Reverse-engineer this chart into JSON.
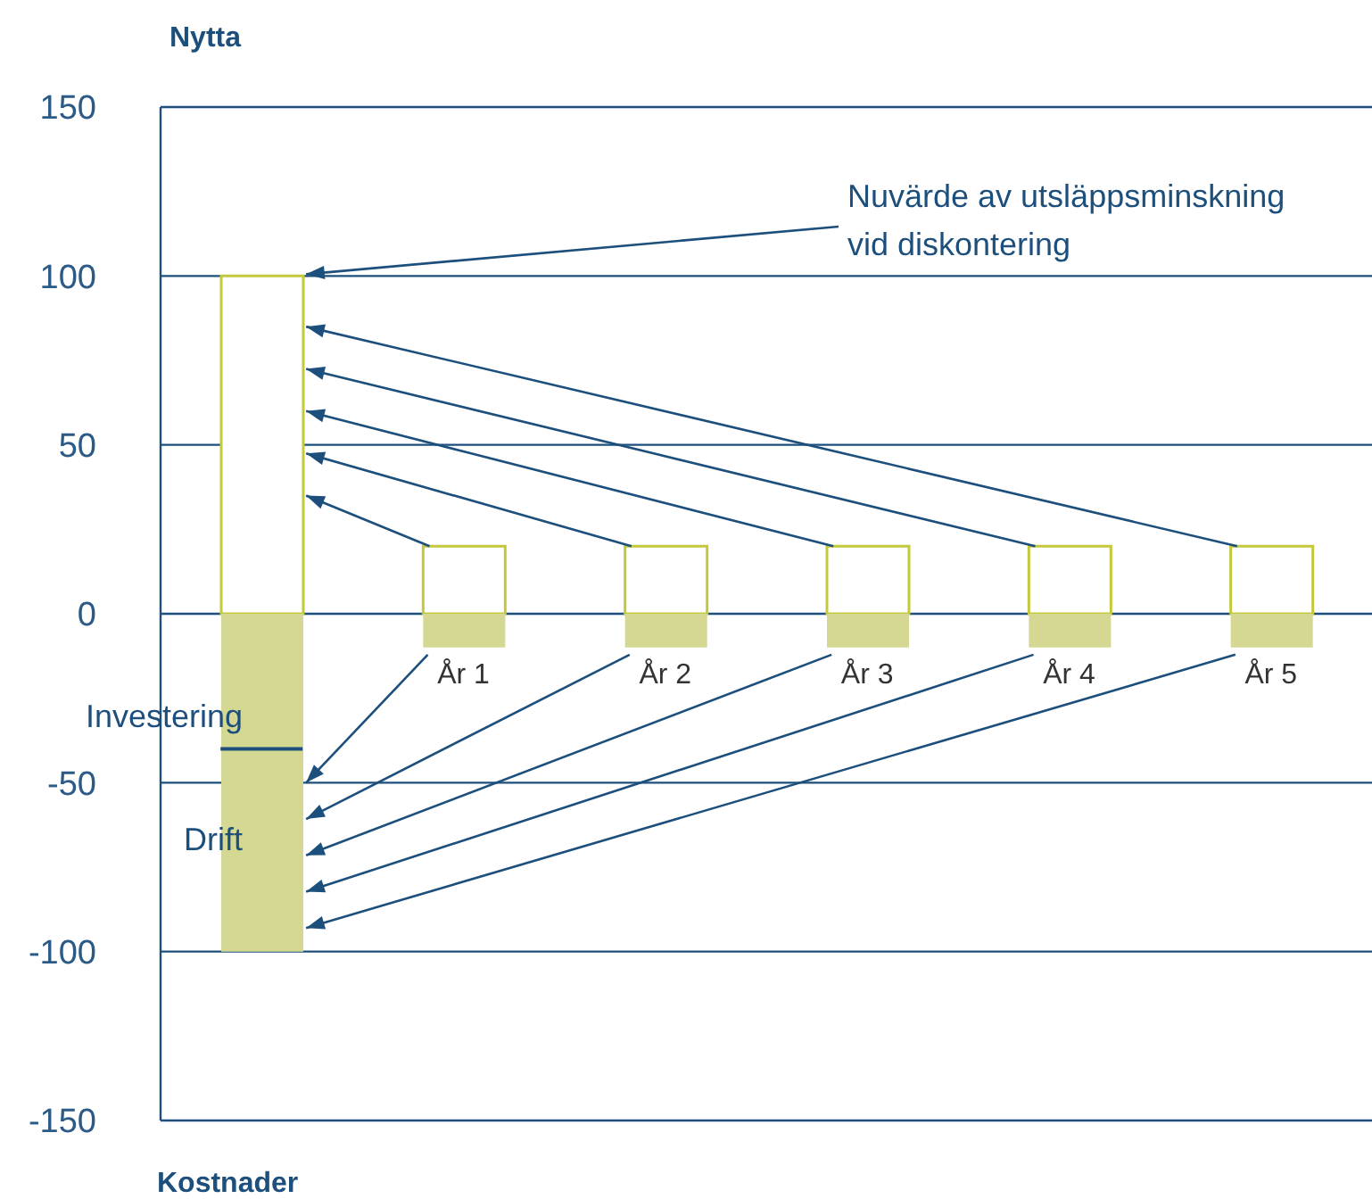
{
  "chart_data": {
    "type": "bar",
    "ylabel": "Nytta",
    "categories": [
      null,
      "År 1",
      "År 2",
      "År 3",
      "År 4",
      "År 5"
    ],
    "series": [
      {
        "color": "#c3c93a",
        "values": [
          100,
          20,
          20,
          20,
          20,
          20
        ]
      },
      {
        "color": "#d4d893",
        "values": [
          -40,
          null,
          null,
          null,
          null,
          null
        ]
      },
      {
        "color": "#d4d893",
        "values": [
          -60,
          -10,
          -10,
          -10,
          -10,
          -10
        ]
      }
    ],
    "stacked": true,
    "ylim": [
      -150,
      150
    ],
    "yticks": [
      -150,
      -100,
      -50,
      0,
      50,
      100,
      150
    ],
    "grid": "y",
    "legend": false,
    "annotations": [
      "Nuvärde av utsläppsminskning vid diskontering",
      "Investering",
      "Drift",
      "Kostnader"
    ]
  }
}
